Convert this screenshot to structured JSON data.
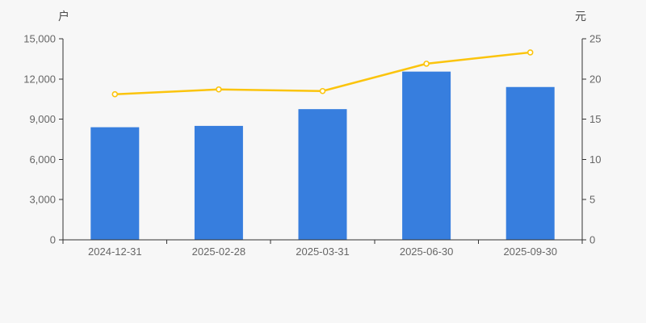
{
  "chart_data": {
    "type": "bar+line dual-axis",
    "categories": [
      "2024-12-31",
      "2025-02-28",
      "2025-03-31",
      "2025-06-30",
      "2025-09-30"
    ],
    "series": [
      {
        "id": "bar-series",
        "type": "bar",
        "axis": "left",
        "color": "#377EDE",
        "values": [
          8400,
          8500,
          9750,
          12550,
          11400
        ]
      },
      {
        "id": "line-series",
        "type": "line",
        "axis": "right",
        "color": "#FBC40D",
        "marker": "hollow-circle",
        "values": [
          18.1,
          18.7,
          18.5,
          21.9,
          23.3
        ]
      }
    ],
    "left_axis": {
      "unit": "户",
      "min": 0,
      "max": 15000,
      "step": 3000,
      "tick_labels": [
        "0",
        "3,000",
        "6,000",
        "9,000",
        "12,000",
        "15,000"
      ]
    },
    "right_axis": {
      "unit": "元",
      "min": 0,
      "max": 25,
      "step": 5,
      "tick_labels": [
        "0",
        "5",
        "10",
        "15",
        "20",
        "25"
      ]
    },
    "grid": false,
    "legend": null,
    "title": ""
  },
  "colors": {
    "background": "#f7f7f7",
    "axis_line": "#333333",
    "tick_label": "#666666",
    "bar": "#377EDE",
    "line": "#FBC40D",
    "marker_fill": "#ffffff"
  }
}
